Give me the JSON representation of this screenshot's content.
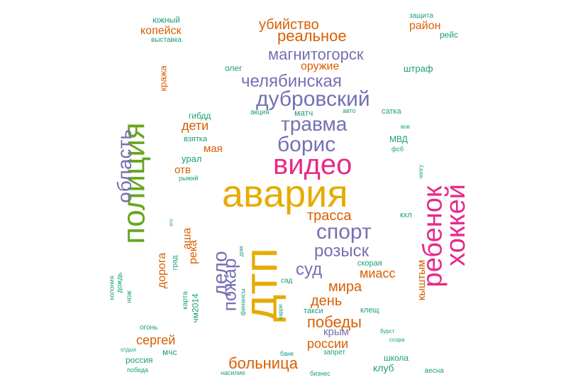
{
  "colors": {
    "gold": "#e6ab02",
    "purple": "#7570b3",
    "pink": "#e7298a",
    "green": "#66a61e",
    "orange": "#d95f02",
    "teal": "#1b9e77"
  },
  "words": [
    {
      "text": "авария",
      "color": "gold"
    },
    {
      "text": "дтп",
      "color": "gold"
    },
    {
      "text": "полиция",
      "color": "green"
    },
    {
      "text": "видео",
      "color": "pink"
    },
    {
      "text": "ребенок",
      "color": "pink"
    },
    {
      "text": "хоккей",
      "color": "pink"
    },
    {
      "text": "дубровский",
      "color": "purple"
    },
    {
      "text": "челябинская",
      "color": "purple"
    },
    {
      "text": "магнитогорск",
      "color": "purple"
    },
    {
      "text": "травма",
      "color": "purple"
    },
    {
      "text": "борис",
      "color": "purple"
    },
    {
      "text": "область",
      "color": "purple"
    },
    {
      "text": "спорт",
      "color": "purple"
    },
    {
      "text": "розыск",
      "color": "purple"
    },
    {
      "text": "суд",
      "color": "purple"
    },
    {
      "text": "дело",
      "color": "purple"
    },
    {
      "text": "пожар",
      "color": "purple"
    },
    {
      "text": "реальное",
      "color": "orange"
    },
    {
      "text": "убийство",
      "color": "orange"
    },
    {
      "text": "больница",
      "color": "orange"
    },
    {
      "text": "победы",
      "color": "orange"
    },
    {
      "text": "трасса",
      "color": "orange"
    },
    {
      "text": "мира",
      "color": "orange"
    },
    {
      "text": "день",
      "color": "orange"
    },
    {
      "text": "россии",
      "color": "orange"
    },
    {
      "text": "сергей",
      "color": "orange"
    },
    {
      "text": "миасс",
      "color": "orange"
    },
    {
      "text": "дети",
      "color": "orange"
    },
    {
      "text": "копейск",
      "color": "orange"
    },
    {
      "text": "район",
      "color": "orange"
    },
    {
      "text": "оружие",
      "color": "orange"
    },
    {
      "text": "мая",
      "color": "orange"
    },
    {
      "text": "отв",
      "color": "orange"
    },
    {
      "text": "кыштым",
      "color": "orange"
    },
    {
      "text": "аша",
      "color": "orange"
    },
    {
      "text": "река",
      "color": "orange"
    },
    {
      "text": "дорога",
      "color": "orange"
    },
    {
      "text": "кража",
      "color": "orange"
    },
    {
      "text": "крым",
      "color": "purple"
    },
    {
      "text": "клуб",
      "color": "teal"
    },
    {
      "text": "южный",
      "color": "teal"
    },
    {
      "text": "выставка",
      "color": "teal"
    },
    {
      "text": "олег",
      "color": "teal"
    },
    {
      "text": "штраф",
      "color": "teal"
    },
    {
      "text": "защита",
      "color": "teal"
    },
    {
      "text": "рейс",
      "color": "teal"
    },
    {
      "text": "гибдд",
      "color": "teal"
    },
    {
      "text": "акция",
      "color": "teal"
    },
    {
      "text": "матч",
      "color": "teal"
    },
    {
      "text": "авто",
      "color": "teal"
    },
    {
      "text": "сатка",
      "color": "teal"
    },
    {
      "text": "взятка",
      "color": "teal"
    },
    {
      "text": "вов",
      "color": "teal"
    },
    {
      "text": "МВД",
      "color": "teal"
    },
    {
      "text": "фсб",
      "color": "teal"
    },
    {
      "text": "урал",
      "color": "teal"
    },
    {
      "text": "рыжий",
      "color": "teal"
    },
    {
      "text": "челгу",
      "color": "teal"
    },
    {
      "text": "кхл",
      "color": "teal"
    },
    {
      "text": "его",
      "color": "teal"
    },
    {
      "text": "град",
      "color": "teal"
    },
    {
      "text": "дом",
      "color": "teal"
    },
    {
      "text": "скорая",
      "color": "teal"
    },
    {
      "text": "колония",
      "color": "teal"
    },
    {
      "text": "дождь",
      "color": "teal"
    },
    {
      "text": "нож",
      "color": "teal"
    },
    {
      "text": "карта",
      "color": "teal"
    },
    {
      "text": "чм2014",
      "color": "teal"
    },
    {
      "text": "финансы",
      "color": "teal"
    },
    {
      "text": "сад",
      "color": "teal"
    },
    {
      "text": "карри",
      "color": "teal"
    },
    {
      "text": "такси",
      "color": "teal"
    },
    {
      "text": "клещ",
      "color": "teal"
    },
    {
      "text": "огонь",
      "color": "teal"
    },
    {
      "text": "мчс",
      "color": "teal"
    },
    {
      "text": "отдых",
      "color": "teal"
    },
    {
      "text": "россия",
      "color": "teal"
    },
    {
      "text": "победа",
      "color": "teal"
    },
    {
      "text": "банк",
      "color": "teal"
    },
    {
      "text": "запрет",
      "color": "teal"
    },
    {
      "text": "бизнес",
      "color": "teal"
    },
    {
      "text": "насилие",
      "color": "teal"
    },
    {
      "text": "бурст",
      "color": "teal"
    },
    {
      "text": "ссора",
      "color": "teal"
    },
    {
      "text": "школа",
      "color": "teal"
    },
    {
      "text": "весна",
      "color": "teal"
    }
  ]
}
